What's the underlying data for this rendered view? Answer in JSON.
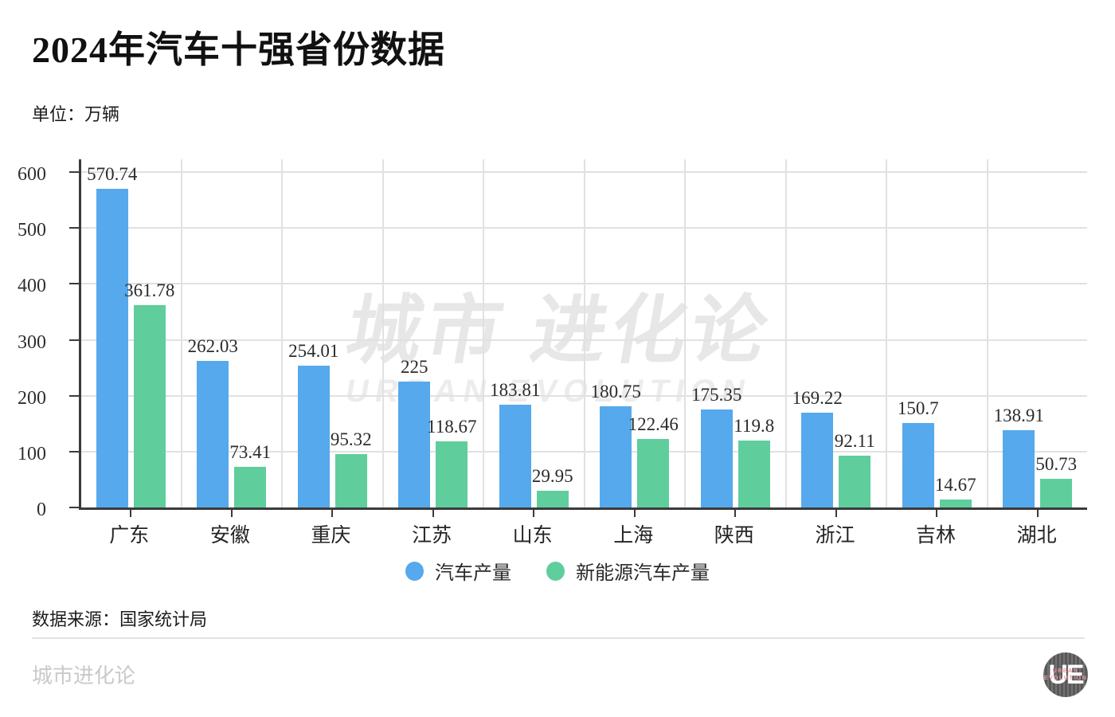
{
  "title": "2024年汽车十强省份数据",
  "unit_label": "单位：万辆",
  "watermark": {
    "cn": "城市 进化论",
    "en": "URBAN EVOLUTION"
  },
  "source": "数据来源：国家统计局",
  "footer": {
    "brand": "城市进化论",
    "logo": {
      "monogram": "UE",
      "line1": "URBAN",
      "line2": "EVOLUTION"
    }
  },
  "colors": {
    "auto_series": "#55a9ec",
    "nev_series": "#5fce9c",
    "axis": "#3b3b3b",
    "gridline": "#e1e1e1",
    "watermark": "#e7e7e7",
    "brand_gray": "#c9c9c9",
    "logo_pink": "#ec96a2"
  },
  "chart_data": {
    "type": "bar",
    "title": "2024年汽车十强省份数据",
    "xlabel": "",
    "ylabel": "单位：万辆",
    "ylim": [
      0,
      600
    ],
    "yticks": [
      0,
      100,
      200,
      300,
      400,
      500,
      600
    ],
    "grid": true,
    "legend_position": "bottom",
    "categories": [
      "广东",
      "安徽",
      "重庆",
      "江苏",
      "山东",
      "上海",
      "陕西",
      "浙江",
      "吉林",
      "湖北"
    ],
    "series": [
      {
        "name": "汽车产量",
        "color": "#55a9ec",
        "values": [
          570.74,
          262.03,
          254.01,
          225,
          183.81,
          180.75,
          175.35,
          169.22,
          150.7,
          138.91
        ]
      },
      {
        "name": "新能源汽车产量",
        "color": "#5fce9c",
        "values": [
          361.78,
          73.41,
          95.32,
          118.67,
          29.95,
          122.46,
          119.8,
          92.11,
          14.67,
          50.73
        ]
      }
    ]
  }
}
